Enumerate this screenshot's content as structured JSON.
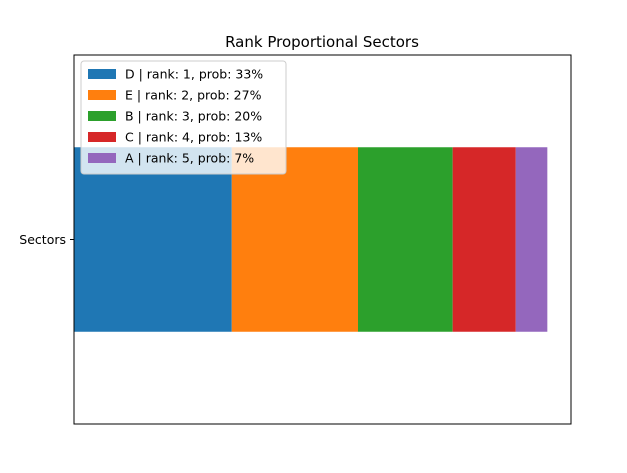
{
  "chart_data": {
    "type": "bar",
    "orientation": "horizontal-stacked",
    "title": "Rank Proportional Sectors",
    "categories": [
      "Sectors"
    ],
    "xlim": [
      0,
      1.05
    ],
    "ylim": [
      -0.5,
      0.5
    ],
    "x_ticks_visible": false,
    "grid": false,
    "legend_position": "upper-left",
    "series": [
      {
        "name": "D | rank: 1, prob: 33%",
        "start": 0.0,
        "value": 0.3333,
        "color": "#1f77b4"
      },
      {
        "name": "E | rank: 2, prob: 27%",
        "start": 0.3333,
        "value": 0.2667,
        "color": "#ff7f0e"
      },
      {
        "name": "B | rank: 3, prob: 20%",
        "start": 0.6,
        "value": 0.2,
        "color": "#2ca02c"
      },
      {
        "name": "C | rank: 4, prob: 13%",
        "start": 0.8,
        "value": 0.1333,
        "color": "#d62728"
      },
      {
        "name": "A | rank: 5, prob: 7%",
        "start": 0.9333,
        "value": 0.0667,
        "color": "#9467bd"
      }
    ]
  }
}
